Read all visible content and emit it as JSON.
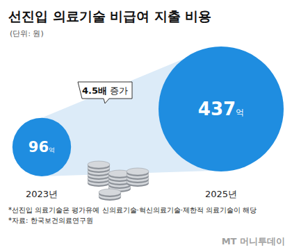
{
  "chart_data": {
    "type": "bubble",
    "title": "선진입 의료기술 비급여 지출 비용",
    "subtitle": "(단위: 원)",
    "categories": [
      "2023년",
      "2025년"
    ],
    "values": [
      96,
      437
    ],
    "value_labels": [
      "96억",
      "437억"
    ],
    "data_labels": true,
    "color": "#1f8de0",
    "annotations": [
      "4.5배 증가"
    ],
    "notes": [
      "*선진입 의료기술은 평가유예 신의료기술·혁신의료기술·제한적 의료기술이 해당",
      "*자료: 한국보건의료연구원"
    ],
    "logo": "MT 머니투데이"
  }
}
